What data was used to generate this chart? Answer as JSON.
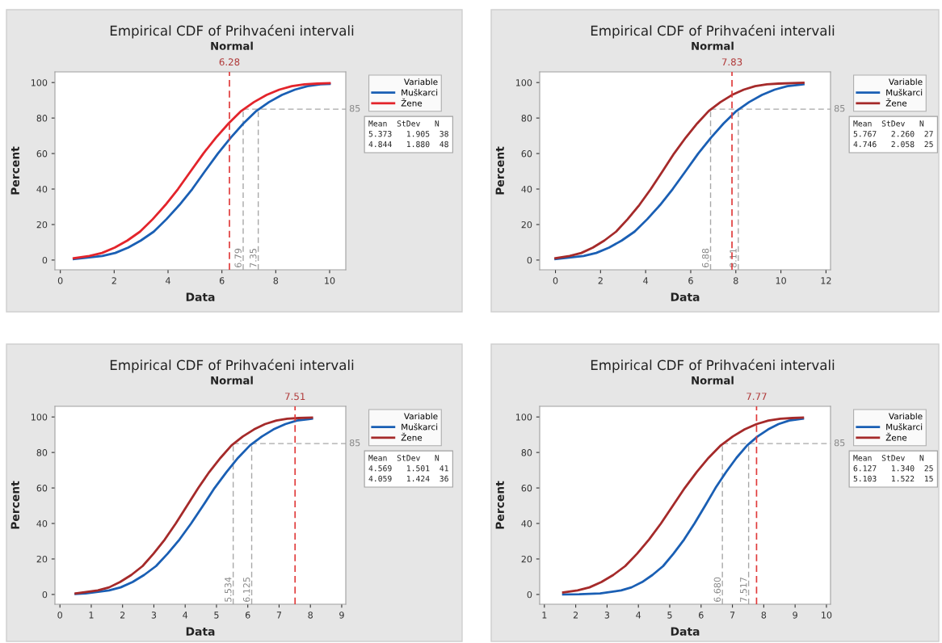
{
  "chart_data": [
    {
      "type": "line",
      "title": "Empirical CDF of Prihvaćeni intervali",
      "subtitle": "Normal",
      "xlabel": "Data",
      "ylabel": "Percent",
      "legend_title": "Variable",
      "legend": "right",
      "grid": false,
      "xlim": [
        -0.2,
        10.6
      ],
      "xticks": [
        0,
        2,
        4,
        6,
        8,
        10
      ],
      "ylim": [
        -5.5,
        106
      ],
      "yticks": [
        0,
        20,
        40,
        60,
        80,
        100
      ],
      "series": [
        {
          "name": "Muškarci",
          "color": "#1a5fb4",
          "x": [
            0.5,
            1.56,
            2.04,
            2.52,
            2.99,
            3.47,
            3.94,
            4.42,
            4.9,
            5.37,
            5.85,
            6.33,
            6.8,
            7.28,
            7.75,
            8.23,
            8.71,
            9.18,
            9.66,
            10.0
          ],
          "values": [
            0.5,
            2.3,
            4,
            7,
            11,
            16,
            23,
            31,
            40,
            50,
            60,
            69,
            77,
            84,
            89,
            93,
            96,
            98,
            99,
            99.2
          ]
        },
        {
          "name": "Žene",
          "color": "#e3242b",
          "x": [
            0.5,
            1.08,
            1.55,
            2.02,
            2.49,
            2.96,
            3.43,
            3.9,
            4.37,
            4.84,
            5.31,
            5.78,
            6.25,
            6.72,
            7.19,
            7.66,
            8.13,
            8.6,
            9.07,
            9.54,
            10.0
          ],
          "values": [
            1.0,
            2.3,
            4,
            7,
            11,
            16,
            23,
            31,
            40,
            50,
            60,
            69,
            77,
            84,
            89,
            93,
            96,
            98,
            99,
            99.4,
            99.7
          ]
        }
      ],
      "ref_lines": [
        {
          "axis": "x",
          "value": 6.28,
          "label": "6.28",
          "color": "#e03a3a",
          "line_style": "dashed"
        },
        {
          "axis": "x",
          "value": 6.79,
          "label": "6.79",
          "color": "#a8a8a8",
          "line_style": "dashed"
        },
        {
          "axis": "x",
          "value": 7.35,
          "label": "7.35",
          "color": "#a8a8a8",
          "line_style": "dashed"
        },
        {
          "axis": "y",
          "value": 85,
          "label": "85",
          "color": "#a8a8a8",
          "line_style": "dashed"
        }
      ],
      "annotations": [
        "Mean  StDev   N",
        "5.373   1.905  38",
        "4.844   1.880  48"
      ]
    },
    {
      "type": "line",
      "title": "Empirical CDF of Prihvaćeni intervali",
      "subtitle": "Normal",
      "xlabel": "Data",
      "ylabel": "Percent",
      "legend_title": "Variable",
      "legend": "right",
      "grid": false,
      "xlim": [
        -0.7,
        12.2
      ],
      "xticks": [
        0,
        2,
        4,
        6,
        8,
        10,
        12
      ],
      "ylim": [
        -5.5,
        106
      ],
      "yticks": [
        0,
        20,
        40,
        60,
        80,
        100
      ],
      "series": [
        {
          "name": "Muškarci",
          "color": "#1a5fb4",
          "x": [
            0.0,
            1.25,
            1.81,
            2.38,
            2.94,
            3.51,
            4.07,
            4.64,
            5.2,
            5.77,
            6.33,
            6.9,
            7.46,
            8.03,
            8.59,
            9.16,
            9.72,
            10.29,
            10.85,
            11.0
          ],
          "values": [
            0.5,
            2.3,
            4,
            7,
            11,
            16,
            23,
            31,
            40,
            50,
            60,
            69,
            77,
            84,
            89,
            93,
            96,
            98,
            98.8,
            99.0
          ]
        },
        {
          "name": "Žene",
          "color": "#a52a2a",
          "x": [
            0.0,
            0.63,
            1.15,
            1.66,
            2.17,
            2.69,
            3.2,
            3.72,
            4.23,
            4.75,
            5.26,
            5.78,
            6.29,
            6.8,
            7.32,
            7.83,
            8.35,
            8.86,
            9.38,
            9.89,
            11.0
          ],
          "values": [
            1.0,
            2.3,
            4,
            7,
            11,
            16,
            23,
            31,
            40,
            50,
            60,
            69,
            77,
            84,
            89,
            93,
            96,
            98,
            99,
            99.4,
            99.9
          ]
        }
      ],
      "ref_lines": [
        {
          "axis": "x",
          "value": 7.83,
          "label": "7.83",
          "color": "#e03a3a",
          "line_style": "dashed"
        },
        {
          "axis": "x",
          "value": 6.88,
          "label": "6.88",
          "color": "#a8a8a8",
          "line_style": "dashed"
        },
        {
          "axis": "x",
          "value": 8.11,
          "label": "8.11",
          "color": "#a8a8a8",
          "line_style": "dashed"
        },
        {
          "axis": "y",
          "value": 85,
          "label": "85",
          "color": "#a8a8a8",
          "line_style": "dashed"
        }
      ],
      "annotations": [
        "Mean  StDev   N",
        "5.767   2.260  27",
        "4.746   2.058  25"
      ]
    },
    {
      "type": "line",
      "title": "Empirical CDF of Prihvaćeni intervali",
      "subtitle": "Normal",
      "xlabel": "Data",
      "ylabel": "Percent",
      "legend_title": "Variable",
      "legend": "right",
      "grid": false,
      "xlim": [
        -0.16,
        9.13
      ],
      "xticks": [
        0,
        1,
        2,
        3,
        4,
        5,
        6,
        7,
        8,
        9
      ],
      "ylim": [
        -5.5,
        106
      ],
      "yticks": [
        0,
        20,
        40,
        60,
        80,
        100
      ],
      "series": [
        {
          "name": "Muškarci",
          "color": "#1a5fb4",
          "x": [
            0.5,
            0.82,
            1.57,
            1.94,
            2.32,
            2.69,
            3.07,
            3.44,
            3.82,
            4.19,
            4.57,
            4.94,
            5.32,
            5.69,
            6.07,
            6.45,
            6.82,
            7.2,
            7.57,
            7.95,
            8.05
          ],
          "values": [
            0.3,
            0.6,
            2.3,
            4,
            7,
            11,
            16,
            23,
            31,
            40,
            50,
            60,
            69,
            77,
            84,
            89,
            93,
            96,
            98,
            98.8,
            99.0
          ]
        },
        {
          "name": "Žene",
          "color": "#a52a2a",
          "x": [
            0.5,
            1.21,
            1.57,
            1.92,
            2.28,
            2.64,
            2.99,
            3.35,
            3.7,
            4.06,
            4.42,
            4.77,
            5.13,
            5.48,
            5.84,
            6.2,
            6.55,
            6.91,
            7.26,
            7.62,
            8.05
          ],
          "values": [
            0.6,
            2.3,
            4,
            7,
            11,
            16,
            23,
            31,
            40,
            50,
            60,
            69,
            77,
            84,
            89,
            93,
            96,
            98,
            99,
            99.4,
            99.7
          ]
        }
      ],
      "ref_lines": [
        {
          "axis": "x",
          "value": 7.51,
          "label": "7.51",
          "color": "#e03a3a",
          "line_style": "dashed"
        },
        {
          "axis": "x",
          "value": 5.534,
          "label": "5.534",
          "color": "#a8a8a8",
          "line_style": "dashed"
        },
        {
          "axis": "x",
          "value": 6.125,
          "label": "6.125",
          "color": "#a8a8a8",
          "line_style": "dashed"
        },
        {
          "axis": "y",
          "value": 85,
          "label": "85",
          "color": "#a8a8a8",
          "line_style": "dashed"
        }
      ],
      "annotations": [
        "Mean  StDev   N",
        "4.569   1.501  41",
        "4.059   1.424  36"
      ]
    },
    {
      "type": "line",
      "title": "Empirical CDF of Prihvaćeni intervali",
      "subtitle": "Normal",
      "xlabel": "Data",
      "ylabel": "Percent",
      "legend_title": "Variable",
      "legend": "right",
      "grid": false,
      "xlim": [
        0.85,
        10.13
      ],
      "xticks": [
        1,
        2,
        3,
        4,
        5,
        6,
        7,
        8,
        9,
        10
      ],
      "ylim": [
        -5.5,
        106
      ],
      "yticks": [
        0,
        20,
        40,
        60,
        80,
        100
      ],
      "series": [
        {
          "name": "Muškarci",
          "color": "#1a5fb4",
          "x": [
            1.6,
            2.11,
            2.78,
            3.45,
            3.78,
            4.12,
            4.45,
            4.79,
            5.12,
            5.46,
            5.79,
            6.13,
            6.46,
            6.8,
            7.13,
            7.47,
            7.8,
            8.14,
            8.47,
            8.81,
            9.14,
            9.25
          ],
          "values": [
            0,
            0.1,
            0.6,
            2.3,
            4,
            7,
            11,
            16,
            23,
            31,
            40,
            50,
            60,
            69,
            77,
            84,
            89,
            93,
            96,
            98,
            98.8,
            99.0
          ]
        },
        {
          "name": "Žene",
          "color": "#a52a2a",
          "x": [
            1.6,
            2.06,
            2.44,
            2.82,
            3.2,
            3.58,
            3.96,
            4.34,
            4.72,
            5.1,
            5.48,
            5.86,
            6.24,
            6.63,
            7.01,
            7.39,
            7.77,
            8.15,
            8.53,
            8.91,
            9.25
          ],
          "values": [
            1.1,
            2.3,
            4,
            7,
            11,
            16,
            23,
            31,
            40,
            50,
            60,
            69,
            77,
            84,
            89,
            93,
            96,
            98,
            99,
            99.4,
            99.7
          ]
        }
      ],
      "ref_lines": [
        {
          "axis": "x",
          "value": 7.77,
          "label": "7.77",
          "color": "#e03a3a",
          "line_style": "dashed"
        },
        {
          "axis": "x",
          "value": 6.68,
          "label": "6.680",
          "color": "#a8a8a8",
          "line_style": "dashed"
        },
        {
          "axis": "x",
          "value": 7.517,
          "label": "7.517",
          "color": "#a8a8a8",
          "line_style": "dashed"
        },
        {
          "axis": "y",
          "value": 85,
          "label": "85",
          "color": "#a8a8a8",
          "line_style": "dashed"
        }
      ],
      "annotations": [
        "Mean  StDev   N",
        "6.127   1.340  25",
        "5.103   1.522  15"
      ]
    }
  ]
}
